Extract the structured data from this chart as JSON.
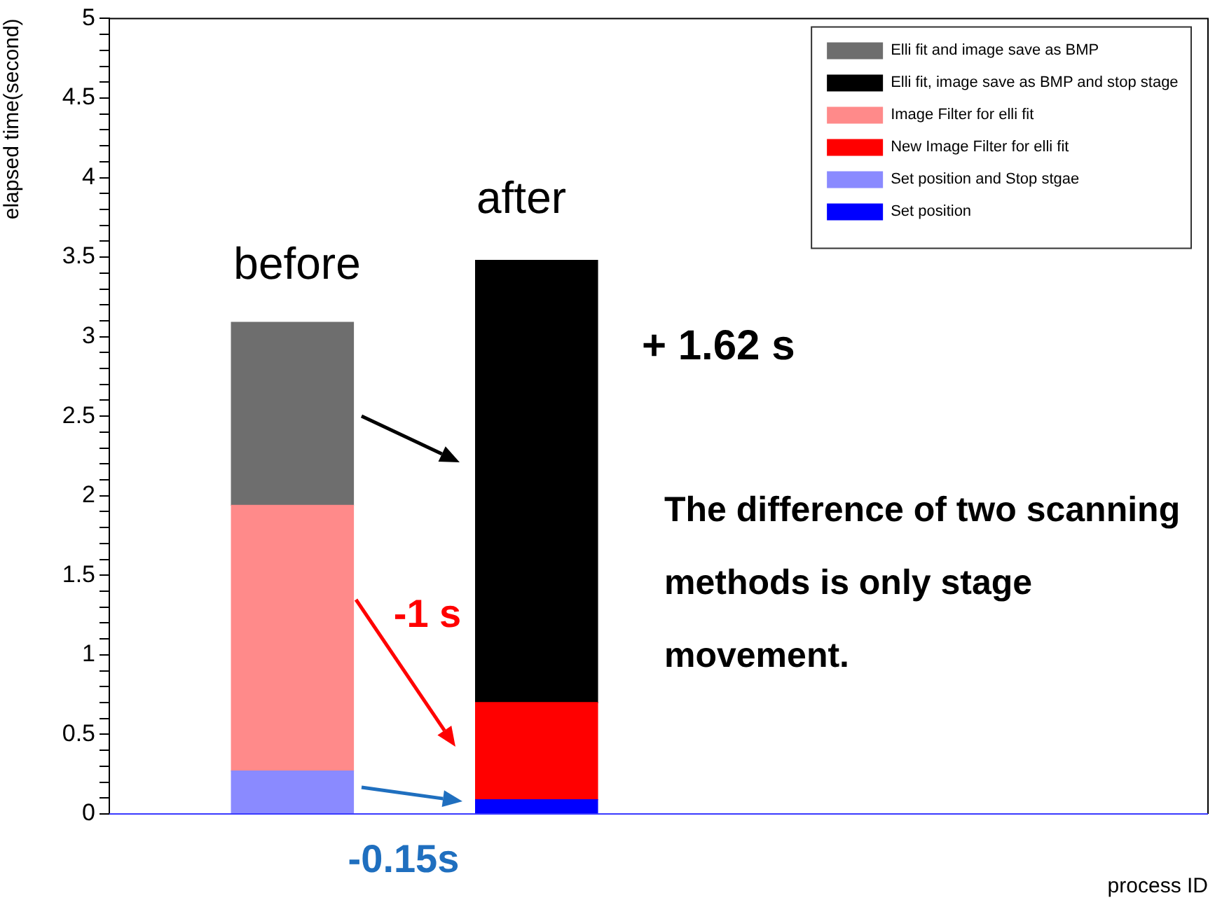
{
  "chart_data": {
    "type": "bar",
    "stacked": true,
    "xlabel": "process ID",
    "ylabel": "elapsed time(second)",
    "categories": [
      null,
      null,
      null,
      null,
      null,
      null,
      null,
      null,
      null
    ],
    "series": [
      {
        "name": "Set position and Stop stgae",
        "color": "#8a8aff",
        "values": [
          null,
          0.27,
          null,
          null,
          null,
          null,
          null,
          null,
          null
        ]
      },
      {
        "name": "Set position",
        "color": "#0000ff",
        "values": [
          null,
          null,
          null,
          0.09,
          null,
          null,
          null,
          null,
          null
        ]
      },
      {
        "name": "Image Filter for elli fit",
        "color": "#ff8a8a",
        "values": [
          null,
          1.67,
          null,
          null,
          null,
          null,
          null,
          null,
          null
        ]
      },
      {
        "name": "New Image Filter for elli fit",
        "color": "#ff0000",
        "values": [
          null,
          null,
          null,
          0.61,
          null,
          null,
          null,
          null,
          null
        ]
      },
      {
        "name": "Elli fit and image save as BMP",
        "color": "#6e6e6e",
        "values": [
          null,
          1.15,
          null,
          null,
          null,
          null,
          null,
          null,
          null
        ]
      },
      {
        "name": "Elli fit, image save as BMP and stop stage",
        "color": "#000000",
        "values": [
          null,
          null,
          null,
          2.78,
          null,
          null,
          null,
          null,
          null
        ]
      }
    ],
    "ylim": [
      0,
      5
    ],
    "yticks": [
      0,
      {
        "value": 0.1,
        "label": null
      },
      {
        "value": 0.2,
        "label": null
      },
      {
        "value": 0.3,
        "label": null
      },
      {
        "value": 0.4,
        "label": null
      },
      0.5,
      {
        "value": 0.6,
        "label": null
      },
      {
        "value": 0.7,
        "label": null
      },
      {
        "value": 0.8,
        "label": null
      },
      {
        "value": 0.9,
        "label": null
      },
      1,
      {
        "value": 1.1,
        "label": null
      },
      {
        "value": 1.2,
        "label": null
      },
      {
        "value": 1.3,
        "label": null
      },
      {
        "value": 1.4,
        "label": null
      },
      1.5,
      {
        "value": 1.6,
        "label": null
      },
      {
        "value": 1.7,
        "label": null
      },
      {
        "value": 1.8,
        "label": null
      },
      {
        "value": 1.9,
        "label": null
      },
      2,
      {
        "value": 2.1,
        "label": null
      },
      {
        "value": 2.2,
        "label": null
      },
      {
        "value": 2.3,
        "label": null
      },
      {
        "value": 2.4,
        "label": null
      },
      2.5,
      {
        "value": 2.6,
        "label": null
      },
      {
        "value": 2.7,
        "label": null
      },
      {
        "value": 2.8,
        "label": null
      },
      {
        "value": 2.9,
        "label": null
      },
      3,
      {
        "value": 3.1,
        "label": null
      },
      {
        "value": 3.2,
        "label": null
      },
      {
        "value": 3.3,
        "label": null
      },
      {
        "value": 3.4,
        "label": null
      },
      3.5,
      {
        "value": 3.6,
        "label": null
      },
      {
        "value": 3.7,
        "label": null
      },
      {
        "value": 3.8,
        "label": null
      },
      {
        "value": 3.9,
        "label": null
      },
      4,
      {
        "value": 4.1,
        "label": null
      },
      {
        "value": 4.2,
        "label": null
      },
      {
        "value": 4.3,
        "label": null
      },
      {
        "value": 4.4,
        "label": null
      },
      4.5,
      {
        "value": 4.6,
        "label": null
      },
      {
        "value": 4.7,
        "label": null
      },
      {
        "value": 4.8,
        "label": null
      },
      {
        "value": 4.9,
        "label": null
      },
      5
    ],
    "tick_labels": "y",
    "legend": "top right",
    "annotations": [
      "before",
      "after",
      "+ 1.62 s",
      "The difference of two scanning methods is only stage movement.",
      "-1 s",
      "-0.15s"
    ]
  }
}
